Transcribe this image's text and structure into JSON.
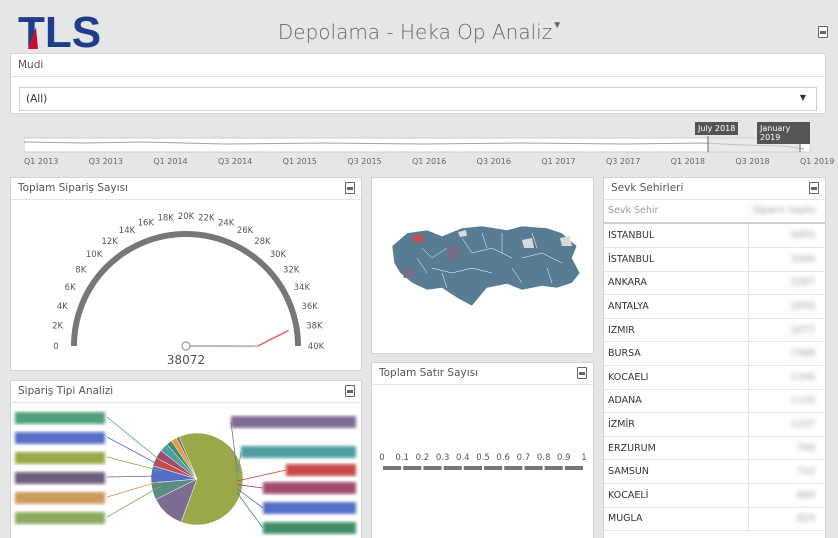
{
  "header": {
    "logo": "TLS",
    "title": "Depolama - Heka Op Analiz",
    "title_filter_icon": "filter-icon",
    "export_icon": "export-icon"
  },
  "filter": {
    "label": "Mudi",
    "selected": "(All)"
  },
  "timeline": {
    "labels": [
      "Q1 2013",
      "Q3 2013",
      "Q1 2014",
      "Q3 2014",
      "Q1 2015",
      "Q3 2015",
      "Q1 2016",
      "Q3 2016",
      "Q1 2017",
      "Q3 2017",
      "Q1 2018",
      "Q3 2018",
      "Q1 2019"
    ],
    "range_start": "July 2018",
    "range_end": "January 2019"
  },
  "gauge": {
    "title": "Toplam Sipariş Sayısı",
    "ticks": [
      "0",
      "2K",
      "4K",
      "6K",
      "8K",
      "10K",
      "12K",
      "14K",
      "16K",
      "18K",
      "20K",
      "22K",
      "24K",
      "26K",
      "28K",
      "30K",
      "32K",
      "34K",
      "36K",
      "38K",
      "40K"
    ],
    "min": 0,
    "max": 40000,
    "value": 38072,
    "value_label": "38072"
  },
  "map": {
    "title": ""
  },
  "cities": {
    "title": "Sevk Sehirleri",
    "col_city": "Sevk Sehir",
    "col_value": "Siparis Sayisi",
    "rows": [
      {
        "city": "ISTANBUL",
        "value": "4455"
      },
      {
        "city": "İSTANBUL",
        "value": "3300"
      },
      {
        "city": "ANKARA",
        "value": "2267"
      },
      {
        "city": "ANTALYA",
        "value": "2050"
      },
      {
        "city": "IZMIR",
        "value": "2077"
      },
      {
        "city": "BURSA",
        "value": "1566"
      },
      {
        "city": "KOCAELI",
        "value": "1340"
      },
      {
        "city": "ADANA",
        "value": "1120"
      },
      {
        "city": "İZMİR",
        "value": "1207"
      },
      {
        "city": "ERZURUM",
        "value": "750"
      },
      {
        "city": "SAMSUN",
        "value": "710"
      },
      {
        "city": "KOCAELİ",
        "value": "684"
      },
      {
        "city": "MUGLA",
        "value": "624"
      }
    ]
  },
  "pie": {
    "title": "Sipariş Tipi Analizi",
    "colors": [
      "#9aa84a",
      "#7e6b92",
      "#5a8c84",
      "#5470c6",
      "#c94a4a",
      "#a04b6e",
      "#4f9ea0",
      "#3f8f6a",
      "#e89a3a",
      "#6f6f6f"
    ]
  },
  "lines": {
    "title": "Toplam Satır Sayısı",
    "ticks": [
      "0",
      "0.1",
      "0.2",
      "0.3",
      "0.4",
      "0.5",
      "0.6",
      "0.7",
      "0.8",
      "0.9",
      "1"
    ]
  }
}
